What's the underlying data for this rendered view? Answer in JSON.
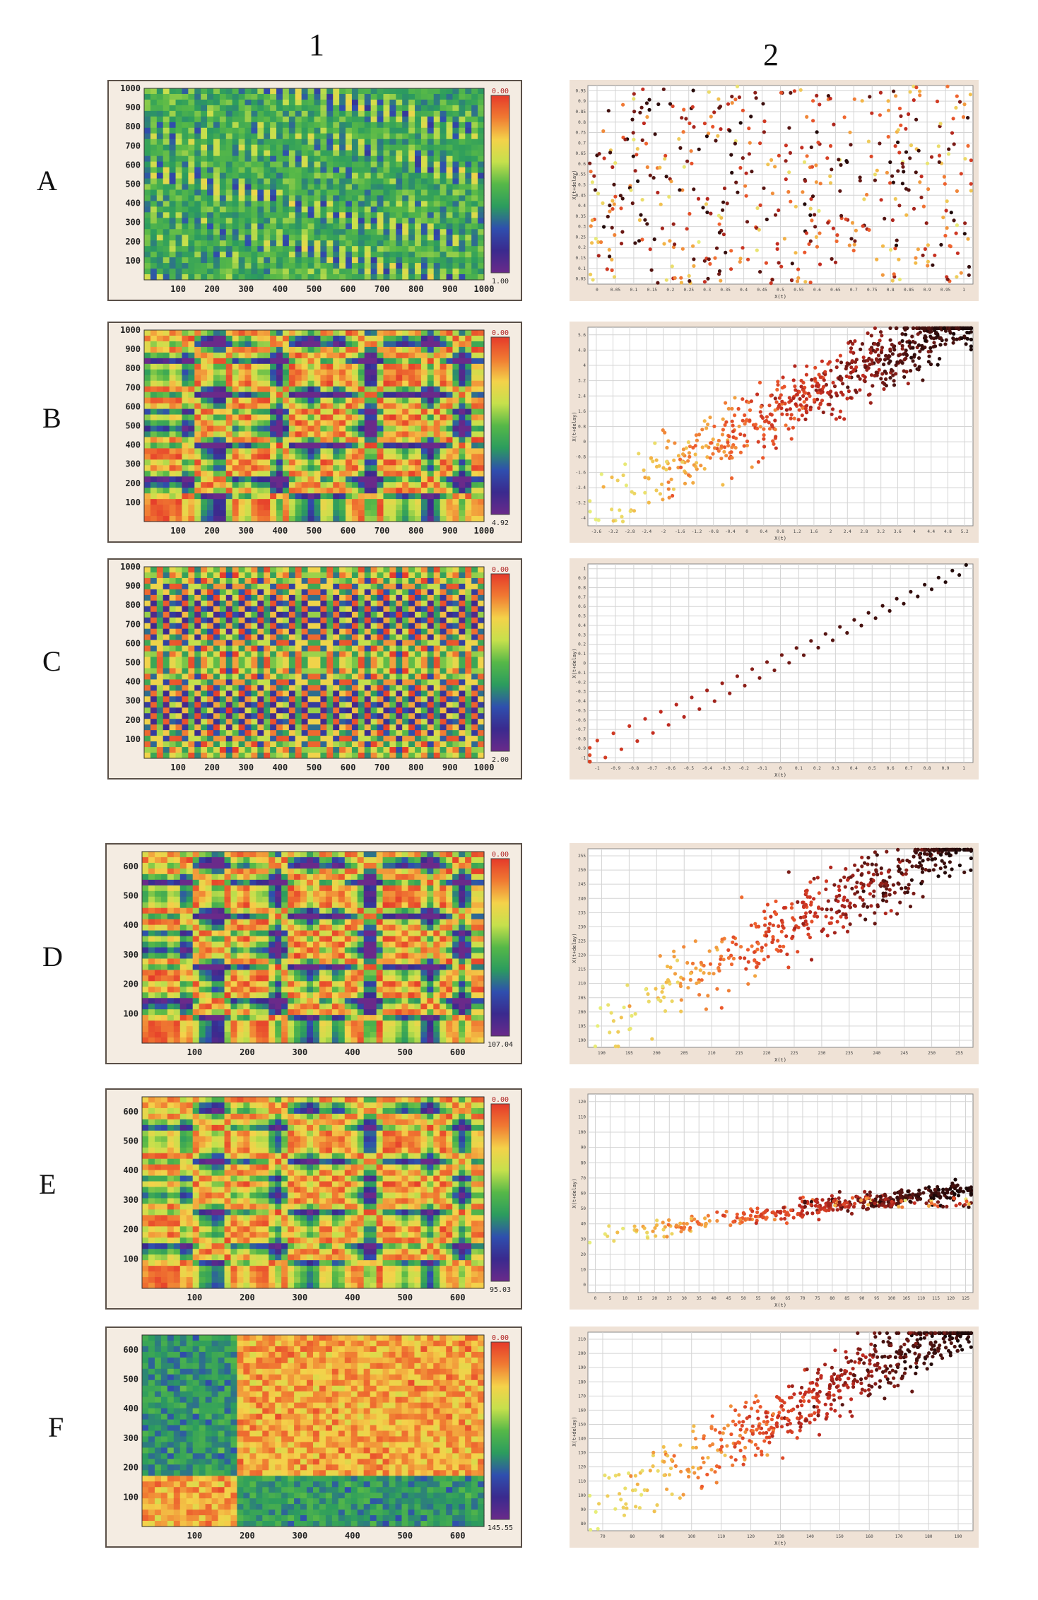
{
  "column_headers": [
    "1",
    "2"
  ],
  "row_labels": [
    "A",
    "B",
    "C",
    "D",
    "E",
    "F"
  ],
  "chart_data": [
    {
      "panel": "A1",
      "type": "heatmap",
      "x_ticks": [
        "100",
        "200",
        "300",
        "400",
        "500",
        "600",
        "700",
        "800",
        "900",
        "1000"
      ],
      "y_ticks": [
        "1000",
        "900",
        "800",
        "700",
        "600",
        "500",
        "400",
        "300",
        "200",
        "100"
      ],
      "xlim": [
        0,
        1000
      ],
      "ylim": [
        0,
        1000
      ],
      "colorbar": {
        "max_label": "0.00",
        "min_label": "1.00"
      },
      "pattern": "noise"
    },
    {
      "panel": "A2",
      "type": "scatter",
      "xlabel": "X(t)",
      "ylabel": "X(t+delay)",
      "x_ticks": [
        "0",
        "0.05",
        "0.1",
        "0.15",
        "0.2",
        "0.25",
        "0.3",
        "0.35",
        "0.4",
        "0.45",
        "0.5",
        "0.55",
        "0.6",
        "0.65",
        "0.7",
        "0.75",
        "0.8",
        "0.85",
        "0.9",
        "0.95",
        "1"
      ],
      "y_ticks": [
        "0.95",
        "0.9",
        "0.85",
        "0.8",
        "0.75",
        "0.7",
        "0.65",
        "0.6",
        "0.55",
        "0.5",
        "0.45",
        "0.4",
        "0.35",
        "0.3",
        "0.25",
        "0.2",
        "0.15",
        "0.1",
        "0.05"
      ],
      "xlim": [
        0,
        1
      ],
      "ylim": [
        0,
        1
      ],
      "grid": true,
      "trend": "uniform random",
      "n_points": 500
    },
    {
      "panel": "B1",
      "type": "heatmap",
      "x_ticks": [
        "100",
        "200",
        "300",
        "400",
        "500",
        "600",
        "700",
        "800",
        "900",
        "1000"
      ],
      "y_ticks": [
        "1000",
        "900",
        "800",
        "700",
        "600",
        "500",
        "400",
        "300",
        "200",
        "100"
      ],
      "xlim": [
        0,
        1000
      ],
      "ylim": [
        0,
        1000
      ],
      "colorbar": {
        "max_label": "0.00",
        "min_label": "4.92"
      },
      "pattern": "block"
    },
    {
      "panel": "B2",
      "type": "scatter",
      "xlabel": "X(t)",
      "ylabel": "X(t+delay)",
      "x_ticks": [
        "-3.6",
        "-3.2",
        "-2.8",
        "-2.4",
        "-2",
        "-1.6",
        "-1.2",
        "-0.8",
        "-0.4",
        "0",
        "0.4",
        "0.8",
        "1.2",
        "1.6",
        "2",
        "2.4",
        "2.8",
        "3.2",
        "3.6",
        "4",
        "4.4",
        "4.8",
        "5.2"
      ],
      "y_ticks": [
        "5.6",
        "4.8",
        "4",
        "3.2",
        "2.4",
        "1.6",
        "0.8",
        "0",
        "-0.8",
        "-1.6",
        "-2.4",
        "-3.2",
        "-4"
      ],
      "xlim": [
        -4,
        5.6
      ],
      "ylim": [
        -4,
        5.6
      ],
      "grid": true,
      "trend": "positive correlation with scatter",
      "n_points": 700
    },
    {
      "panel": "C1",
      "type": "heatmap",
      "x_ticks": [
        "100",
        "200",
        "300",
        "400",
        "500",
        "600",
        "700",
        "800",
        "900",
        "1000"
      ],
      "y_ticks": [
        "1000",
        "900",
        "800",
        "700",
        "600",
        "500",
        "400",
        "300",
        "200",
        "100"
      ],
      "xlim": [
        0,
        1000
      ],
      "ylim": [
        0,
        1000
      ],
      "colorbar": {
        "max_label": "0.00",
        "min_label": "2.00"
      },
      "pattern": "periodic"
    },
    {
      "panel": "C2",
      "type": "scatter",
      "xlabel": "X(t)",
      "ylabel": "X(t+delay)",
      "x_ticks": [
        "-1",
        "-0.9",
        "-0.8",
        "-0.7",
        "-0.6",
        "-0.5",
        "-0.4",
        "-0.3",
        "-0.2",
        "-0.1",
        "0",
        "0.1",
        "0.2",
        "0.3",
        "0.4",
        "0.5",
        "0.6",
        "0.7",
        "0.8",
        "0.9",
        "1"
      ],
      "y_ticks": [
        "1",
        "0.9",
        "0.8",
        "0.7",
        "0.6",
        "0.5",
        "0.4",
        "0.3",
        "0.2",
        "0.1",
        "0",
        "-0.1",
        "-0.2",
        "-0.3",
        "-0.4",
        "-0.5",
        "-0.6",
        "-0.7",
        "-0.8",
        "-0.9",
        "-1"
      ],
      "xlim": [
        -1,
        1
      ],
      "ylim": [
        -1,
        1
      ],
      "grid": true,
      "trend": "deterministic line (two branches)",
      "n_points": 90
    },
    {
      "panel": "D1",
      "type": "heatmap",
      "x_ticks": [
        "100",
        "200",
        "300",
        "400",
        "500",
        "600"
      ],
      "y_ticks": [
        "600",
        "500",
        "400",
        "300",
        "200",
        "100"
      ],
      "xlim": [
        0,
        650
      ],
      "ylim": [
        0,
        650
      ],
      "colorbar": {
        "max_label": "0.00",
        "min_label": "107.04"
      },
      "pattern": "block"
    },
    {
      "panel": "D2",
      "type": "scatter",
      "xlabel": "X(t)",
      "ylabel": "X(t+delay)",
      "x_ticks": [
        "190",
        "195",
        "200",
        "205",
        "210",
        "215",
        "220",
        "225",
        "230",
        "235",
        "240",
        "245",
        "250",
        "255"
      ],
      "y_ticks": [
        "255",
        "250",
        "245",
        "240",
        "235",
        "230",
        "225",
        "220",
        "215",
        "210",
        "205",
        "200",
        "195",
        "190"
      ],
      "xlim": [
        185,
        257
      ],
      "ylim": [
        185,
        257
      ],
      "grid": true,
      "trend": "positive correlation, dense cluster upper right",
      "n_points": 500
    },
    {
      "panel": "E1",
      "type": "heatmap",
      "x_ticks": [
        "100",
        "200",
        "300",
        "400",
        "500",
        "600"
      ],
      "y_ticks": [
        "600",
        "500",
        "400",
        "300",
        "200",
        "100"
      ],
      "xlim": [
        0,
        650
      ],
      "ylim": [
        0,
        650
      ],
      "colorbar": {
        "max_label": "0.00",
        "min_label": "95.03"
      },
      "pattern": "lattice"
    },
    {
      "panel": "E2",
      "type": "scatter",
      "xlabel": "X(t)",
      "ylabel": "X(t+delay)",
      "x_ticks": [
        "0",
        "5",
        "10",
        "15",
        "20",
        "25",
        "30",
        "35",
        "40",
        "45",
        "50",
        "55",
        "60",
        "65",
        "70",
        "75",
        "80",
        "85",
        "90",
        "95",
        "100",
        "105",
        "110",
        "115",
        "120",
        "125"
      ],
      "y_ticks": [
        "120",
        "110",
        "100",
        "90",
        "80",
        "70",
        "60",
        "50",
        "40",
        "30",
        "20",
        "10",
        "0"
      ],
      "xlim": [
        0,
        126
      ],
      "ylim": [
        0,
        126
      ],
      "grid": true,
      "trend": "clustered, weakly correlated",
      "n_points": 450
    },
    {
      "panel": "F1",
      "type": "heatmap",
      "x_ticks": [
        "100",
        "200",
        "300",
        "400",
        "500",
        "600"
      ],
      "y_ticks": [
        "600",
        "500",
        "400",
        "300",
        "200",
        "100"
      ],
      "xlim": [
        0,
        650
      ],
      "ylim": [
        0,
        650
      ],
      "colorbar": {
        "max_label": "0.00",
        "min_label": "145.55"
      },
      "pattern": "two-block"
    },
    {
      "panel": "F2",
      "type": "scatter",
      "xlabel": "X(t)",
      "ylabel": "X(t+delay)",
      "x_ticks": [
        "70",
        "80",
        "90",
        "100",
        "110",
        "120",
        "130",
        "140",
        "150",
        "160",
        "170",
        "180",
        "190"
      ],
      "y_ticks": [
        "210",
        "200",
        "190",
        "180",
        "170",
        "160",
        "150",
        "140",
        "130",
        "120",
        "110",
        "100",
        "90",
        "80"
      ],
      "xlim": [
        65,
        198
      ],
      "ylim": [
        70,
        215
      ],
      "grid": true,
      "trend": "positive correlation",
      "n_points": 600
    }
  ],
  "colors": {
    "heat_scale": [
      "#e53a2a",
      "#f07a32",
      "#f4d24a",
      "#c6e04c",
      "#56b848",
      "#2c9c5e",
      "#2f4fae",
      "#3a2a8e",
      "#6a2a8a"
    ],
    "scatter_scale": [
      "#e7ee7a",
      "#f3b848",
      "#ee5a2c",
      "#c02a20",
      "#5a1512",
      "#1a0808"
    ]
  }
}
